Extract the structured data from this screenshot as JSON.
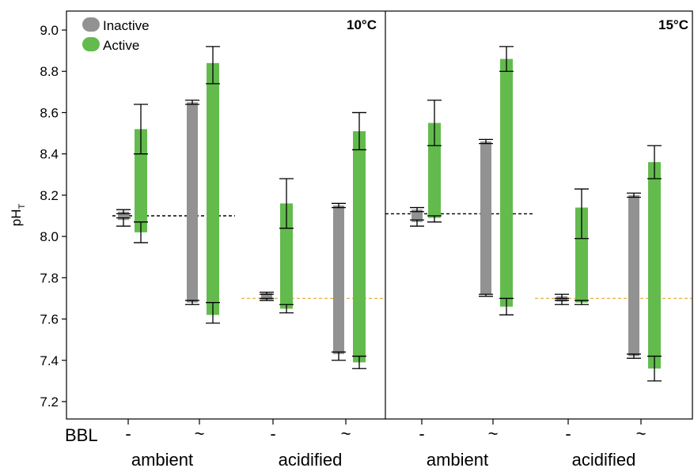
{
  "chart_data": {
    "type": "bar",
    "subtype": "floating-range-bars-with-error-bars",
    "ylabel": "pH",
    "ylabel_subscript": "T",
    "ylim": [
      7.1,
      9.1
    ],
    "yticks": [
      "7.2",
      "7.4",
      "7.6",
      "7.8",
      "8.0",
      "8.2",
      "8.4",
      "8.6",
      "8.8",
      "9.0"
    ],
    "bbl_label": "BBL",
    "legend": {
      "placement": "top-left",
      "entries": [
        {
          "name": "Inactive",
          "color": "#929292"
        },
        {
          "name": "Active",
          "color": "#63bb4d"
        }
      ]
    },
    "panels": [
      {
        "title": "10°C",
        "reference_lines": [
          {
            "value": 8.1,
            "color": "#000000",
            "from_group": 0,
            "to_group": 1
          },
          {
            "value": 7.7,
            "color": "#e8b34a",
            "from_group": 2,
            "to_group": 3
          }
        ],
        "groups": [
          {
            "treatment": "ambient",
            "bbl": "-",
            "inactive": {
              "range": [
                8.08,
                8.12
              ],
              "err_low": [
                8.05,
                8.09
              ],
              "err_high": [
                8.11,
                8.13
              ]
            },
            "active": {
              "range": [
                8.02,
                8.52
              ],
              "err_low": [
                7.97,
                8.07
              ],
              "err_high": [
                8.4,
                8.64
              ]
            }
          },
          {
            "treatment": "ambient",
            "bbl": "~",
            "inactive": {
              "range": [
                7.68,
                8.65
              ],
              "err_low": [
                7.67,
                7.69
              ],
              "err_high": [
                8.64,
                8.66
              ]
            },
            "active": {
              "range": [
                7.62,
                8.84
              ],
              "err_low": [
                7.58,
                7.68
              ],
              "err_high": [
                8.74,
                8.92
              ]
            }
          },
          {
            "treatment": "acidified",
            "bbl": "-",
            "inactive": {
              "range": [
                7.695,
                7.725
              ],
              "err_low": [
                7.69,
                7.7
              ],
              "err_high": [
                7.72,
                7.73
              ]
            },
            "active": {
              "range": [
                7.65,
                8.16
              ],
              "err_low": [
                7.63,
                7.67
              ],
              "err_high": [
                8.04,
                8.28
              ]
            }
          },
          {
            "treatment": "acidified",
            "bbl": "~",
            "inactive": {
              "range": [
                7.43,
                8.15
              ],
              "err_low": [
                7.4,
                7.44
              ],
              "err_high": [
                8.14,
                8.16
              ]
            },
            "active": {
              "range": [
                7.39,
                8.51
              ],
              "err_low": [
                7.36,
                7.42
              ],
              "err_high": [
                8.42,
                8.6
              ]
            }
          }
        ]
      },
      {
        "title": "15°C",
        "reference_lines": [
          {
            "value": 8.11,
            "color": "#000000",
            "from_group": 0,
            "to_group": 1
          },
          {
            "value": 7.7,
            "color": "#e8b34a",
            "from_group": 2,
            "to_group": 3
          }
        ],
        "groups": [
          {
            "treatment": "ambient",
            "bbl": "-",
            "inactive": {
              "range": [
                8.07,
                8.13
              ],
              "err_low": [
                8.05,
                8.08
              ],
              "err_high": [
                8.12,
                8.14
              ]
            },
            "active": {
              "range": [
                8.09,
                8.55
              ],
              "err_low": [
                8.07,
                8.1
              ],
              "err_high": [
                8.44,
                8.66
              ]
            }
          },
          {
            "treatment": "ambient",
            "bbl": "~",
            "inactive": {
              "range": [
                7.72,
                8.46
              ],
              "err_low": [
                7.71,
                7.72
              ],
              "err_high": [
                8.45,
                8.47
              ]
            },
            "active": {
              "range": [
                7.66,
                8.86
              ],
              "err_low": [
                7.62,
                7.7
              ],
              "err_high": [
                8.8,
                8.92
              ]
            }
          },
          {
            "treatment": "acidified",
            "bbl": "-",
            "inactive": {
              "range": [
                7.685,
                7.71
              ],
              "err_low": [
                7.67,
                7.69
              ],
              "err_high": [
                7.7,
                7.72
              ]
            },
            "active": {
              "range": [
                7.68,
                8.14
              ],
              "err_low": [
                7.67,
                7.69
              ],
              "err_high": [
                7.99,
                8.23
              ]
            }
          },
          {
            "treatment": "acidified",
            "bbl": "~",
            "inactive": {
              "range": [
                7.42,
                8.2
              ],
              "err_low": [
                7.41,
                7.43
              ],
              "err_high": [
                8.19,
                8.21
              ]
            },
            "active": {
              "range": [
                7.36,
                8.36
              ],
              "err_low": [
                7.3,
                7.42
              ],
              "err_high": [
                8.28,
                8.44
              ]
            }
          }
        ]
      }
    ],
    "group_labels": [
      "ambient",
      "acidified",
      "ambient",
      "acidified"
    ]
  }
}
